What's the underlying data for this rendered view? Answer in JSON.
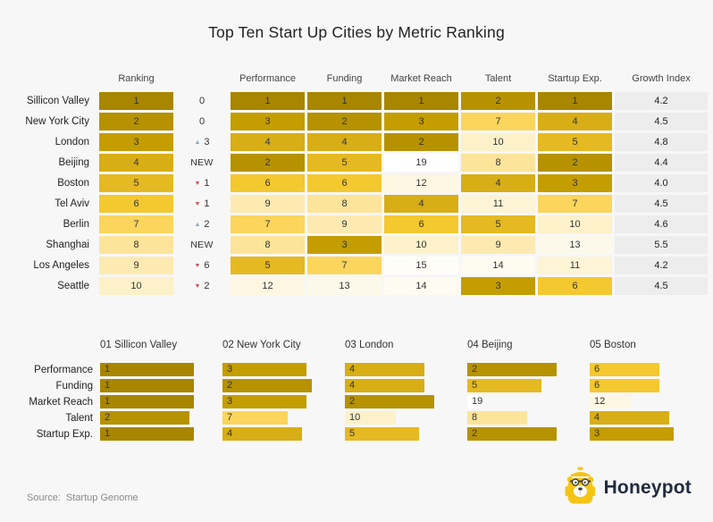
{
  "title": "Top Ten Start Up Cities by Metric Ranking",
  "source": {
    "label": "Source:",
    "value": "Startup Genome"
  },
  "brand": {
    "name": "Honeypot"
  },
  "icons": {
    "up": "▲",
    "down": "▼"
  },
  "colors": {
    "background": "#f7f7f7",
    "heat_scale": [
      "#a88600",
      "#b69200",
      "#c49d00",
      "#d8ae16",
      "#e5b922",
      "#f4c82f",
      "#fbd55c",
      "#fce49a",
      "#fdeab0",
      "#fdf1ca",
      "#fdf4d6",
      "#fdf7e2",
      "#fdf9ea",
      "#fefbf1",
      "#fefdf7",
      "#ffffff"
    ],
    "up_arrow": "#72aecb",
    "down_arrow": "#c9524e",
    "growth_cell_bg": "#ededed",
    "brand_yellow": "#f5c516",
    "brand_navy": "#222c3e"
  },
  "chart_data": [
    {
      "type": "heatmap",
      "title": "Top Ten Start Up Cities by Metric Ranking",
      "columns": [
        "Ranking",
        "Performance",
        "Funding",
        "Market Reach",
        "Talent",
        "Startup Exp.",
        "Growth Index"
      ],
      "legend_position": "none",
      "value_encoding": "lower rank = darker gold, higher rank = lighter",
      "rows": [
        {
          "city": "Sillicon Valley",
          "ranking": 1,
          "change": "0",
          "change_dir": "none",
          "performance": 1,
          "funding": 1,
          "market_reach": 1,
          "talent": 2,
          "startup_exp": 1,
          "growth_index": "4.2"
        },
        {
          "city": "New York City",
          "ranking": 2,
          "change": "0",
          "change_dir": "none",
          "performance": 3,
          "funding": 2,
          "market_reach": 3,
          "talent": 7,
          "startup_exp": 4,
          "growth_index": "4.5"
        },
        {
          "city": "London",
          "ranking": 3,
          "change": "3",
          "change_dir": "up",
          "performance": 4,
          "funding": 4,
          "market_reach": 2,
          "talent": 10,
          "startup_exp": 5,
          "growth_index": "4.8"
        },
        {
          "city": "Beijing",
          "ranking": 4,
          "change": "NEW",
          "change_dir": "new",
          "performance": 2,
          "funding": 5,
          "market_reach": 19,
          "talent": 8,
          "startup_exp": 2,
          "growth_index": "4.4"
        },
        {
          "city": "Boston",
          "ranking": 5,
          "change": "1",
          "change_dir": "down",
          "performance": 6,
          "funding": 6,
          "market_reach": 12,
          "talent": 4,
          "startup_exp": 3,
          "growth_index": "4.0"
        },
        {
          "city": "Tel Aviv",
          "ranking": 6,
          "change": "1",
          "change_dir": "down",
          "performance": 9,
          "funding": 8,
          "market_reach": 4,
          "talent": 11,
          "startup_exp": 7,
          "growth_index": "4.5"
        },
        {
          "city": "Berlin",
          "ranking": 7,
          "change": "2",
          "change_dir": "up",
          "performance": 7,
          "funding": 9,
          "market_reach": 6,
          "talent": 5,
          "startup_exp": 10,
          "growth_index": "4.6"
        },
        {
          "city": "Shanghai",
          "ranking": 8,
          "change": "NEW",
          "change_dir": "new",
          "performance": 8,
          "funding": 3,
          "market_reach": 10,
          "talent": 9,
          "startup_exp": 13,
          "growth_index": "5.5"
        },
        {
          "city": "Los Angeles",
          "ranking": 9,
          "change": "6",
          "change_dir": "down",
          "performance": 5,
          "funding": 7,
          "market_reach": 15,
          "talent": 14,
          "startup_exp": 11,
          "growth_index": "4.2"
        },
        {
          "city": "Seattle",
          "ranking": 10,
          "change": "2",
          "change_dir": "down",
          "performance": 12,
          "funding": 13,
          "market_reach": 14,
          "talent": 3,
          "startup_exp": 6,
          "growth_index": "4.5"
        }
      ]
    },
    {
      "type": "bar",
      "orientation": "horizontal",
      "metrics": [
        "Performance",
        "Funding",
        "Market Reach",
        "Talent",
        "Startup Exp."
      ],
      "groups": [
        {
          "label": "01 Sillicon Valley",
          "values": [
            1,
            1,
            1,
            2,
            1
          ]
        },
        {
          "label": "02 New York City",
          "values": [
            3,
            2,
            3,
            7,
            4
          ]
        },
        {
          "label": "03 London",
          "values": [
            4,
            4,
            2,
            10,
            5
          ]
        },
        {
          "label": "04 Beijing",
          "values": [
            2,
            5,
            19,
            8,
            2
          ]
        },
        {
          "label": "05 Boston",
          "values": [
            6,
            6,
            12,
            4,
            3
          ]
        }
      ],
      "value_encoding": "bar length and gold shade encode rank (1 = longest/darkest)"
    }
  ]
}
